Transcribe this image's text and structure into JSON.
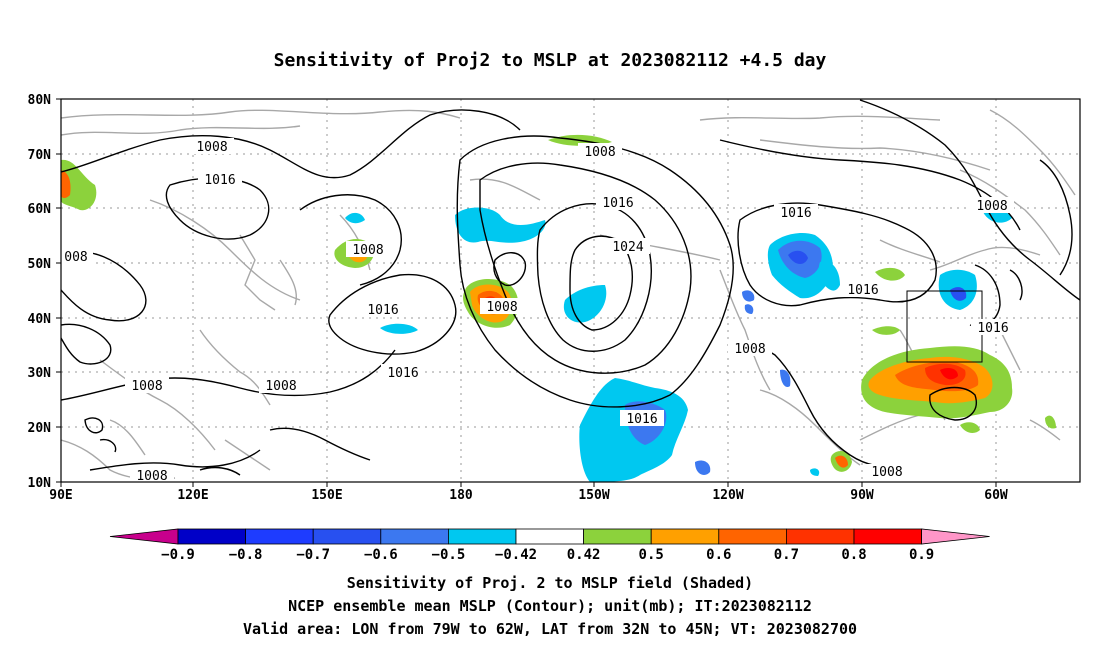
{
  "title": "Sensitivity of Proj2 to MSLP at 2023082112 +4.5 day",
  "lat_labels": [
    "80N",
    "70N",
    "60N",
    "50N",
    "40N",
    "30N",
    "20N",
    "10N"
  ],
  "lon_labels": [
    "90E",
    "120E",
    "150E",
    "180",
    "150W",
    "120W",
    "90W",
    "60W"
  ],
  "contour_labels": [
    "1008",
    "1016",
    "1008",
    "008",
    "1008",
    "1016",
    "1008",
    "1008",
    "1008",
    "1016",
    "1016",
    "1024",
    "1016",
    "1008",
    "1016",
    "1016",
    "1008",
    "1016",
    "1008",
    "1008"
  ],
  "colorbar": {
    "labels": [
      "-0.9",
      "-0.8",
      "-0.7",
      "-0.6",
      "-0.5",
      "-0.42",
      "0.42",
      "0.5",
      "0.6",
      "0.7",
      "0.8",
      "0.9"
    ],
    "colors": [
      "#0000c8",
      "#1e3cff",
      "#2850f0",
      "#3c78f0",
      "#00c8f0",
      "#ffffff",
      "#8cd23c",
      "#ffa000",
      "#ff6400",
      "#ff3200",
      "#ff0000"
    ],
    "end_low": "#c8008c",
    "end_high": "#ff96c8"
  },
  "captions": [
    "Sensitivity of Proj. 2 to MSLP field (Shaded)",
    "NCEP ensemble mean MSLP (Contour); unit(mb); IT:2023082112",
    "Valid area: LON from 79W to 62W, LAT from 32N to 45N; VT: 2023082700"
  ]
}
